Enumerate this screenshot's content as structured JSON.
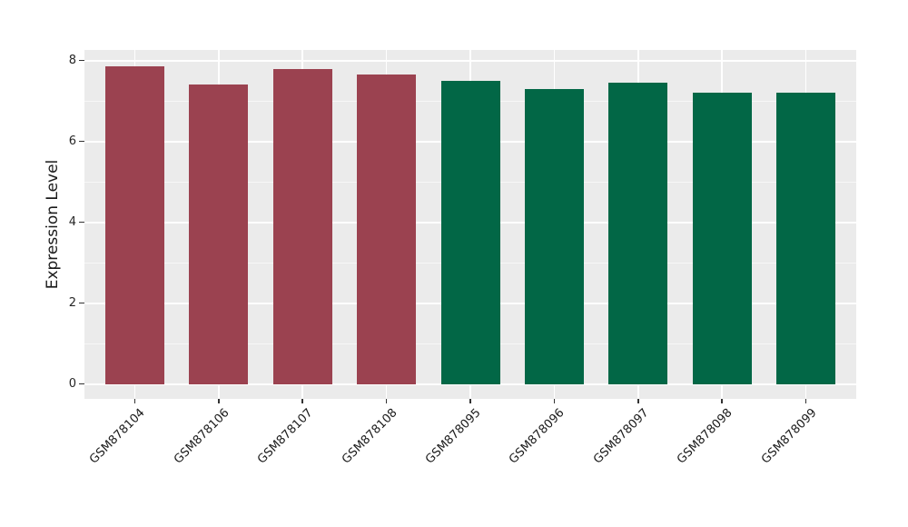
{
  "chart_data": {
    "type": "bar",
    "title": "",
    "xlabel": "",
    "ylabel": "Expression Level",
    "categories": [
      "GSM878104",
      "GSM878106",
      "GSM878107",
      "GSM878108",
      "GSM878095",
      "GSM878096",
      "GSM878097",
      "GSM878098",
      "GSM878099"
    ],
    "values": [
      7.85,
      7.4,
      7.8,
      7.65,
      7.5,
      7.3,
      7.45,
      7.2,
      7.2
    ],
    "bar_colors": [
      "#9b4250",
      "#9b4250",
      "#9b4250",
      "#9b4250",
      "#026746",
      "#026746",
      "#026746",
      "#026746",
      "#026746"
    ],
    "yticks": [
      0,
      2,
      4,
      6,
      8
    ],
    "yticks_minor": [
      1,
      3,
      5,
      7
    ],
    "ylim": [
      0,
      8.26
    ],
    "grid": true,
    "legend": "none",
    "colors": {
      "group_left": "#9b4250",
      "group_right": "#026746",
      "panel_bg": "#ebebeb",
      "grid_major": "#ffffff",
      "grid_minor": "#f7f7f7",
      "tick_label": "#262626",
      "axis_label": "#1a1a1a",
      "tick_mark": "#333333",
      "figure_bg": "#ffffff"
    }
  }
}
